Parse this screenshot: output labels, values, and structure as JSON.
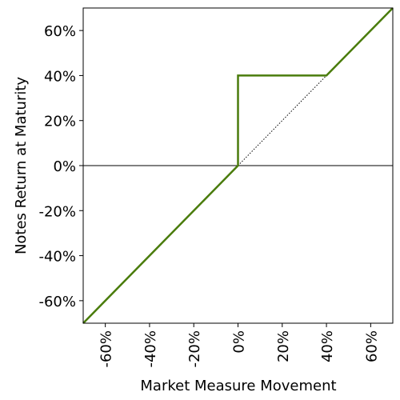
{
  "chart_data": {
    "type": "line",
    "x_label": "Market Measure Movement",
    "y_label": "Notes Return at Maturity",
    "xlim": [
      -70,
      70
    ],
    "ylim": [
      -70,
      70
    ],
    "xticks": [
      {
        "value": -60,
        "label": "-60%"
      },
      {
        "value": -40,
        "label": "-40%"
      },
      {
        "value": -20,
        "label": "-20%"
      },
      {
        "value": 0,
        "label": "0%"
      },
      {
        "value": 20,
        "label": "20%"
      },
      {
        "value": 40,
        "label": "40%"
      },
      {
        "value": 60,
        "label": "60%"
      }
    ],
    "yticks": [
      {
        "value": -60,
        "label": "-60%"
      },
      {
        "value": -40,
        "label": "-40%"
      },
      {
        "value": -20,
        "label": "-20%"
      },
      {
        "value": 0,
        "label": "0%"
      },
      {
        "value": 20,
        "label": "20%"
      },
      {
        "value": 40,
        "label": "40%"
      },
      {
        "value": 60,
        "label": "60%"
      }
    ],
    "reference_line": 0,
    "series": [
      {
        "color": "#4a7c0c",
        "style": "solid",
        "x": [
          -70,
          0,
          0,
          40,
          70
        ],
        "values": [
          -70,
          0,
          40,
          40,
          70
        ]
      },
      {
        "color": "#000000",
        "style": "dotted",
        "x": [
          0,
          40
        ],
        "values": [
          0,
          40
        ]
      }
    ]
  }
}
